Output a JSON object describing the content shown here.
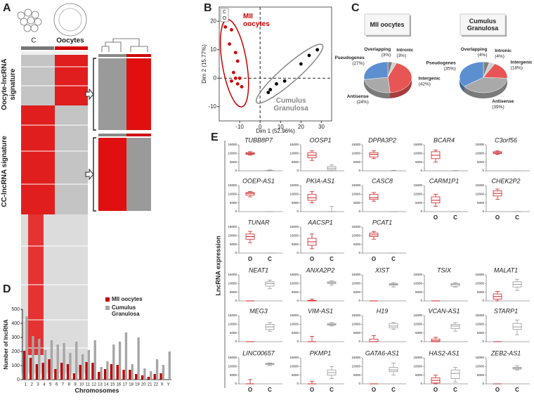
{
  "chart_data": [
    {
      "type": "heatmap",
      "panel": "A",
      "column_labels": [
        "C",
        "Oocytes"
      ],
      "row_labels": [
        "Oocyte-lncRNA signature",
        "CC-lncRNA signature"
      ]
    },
    {
      "type": "scatter",
      "panel": "B",
      "xlabel": "Dim 1 (52.96%)",
      "ylabel": "Dim 2 (15.77%)",
      "legend_labels": [
        "C",
        "O"
      ],
      "xlim": [
        -20,
        35
      ],
      "ylim": [
        -15,
        25
      ],
      "xticks": [
        -10,
        0,
        10,
        20,
        30
      ],
      "yticks": [
        -10,
        0,
        10,
        20
      ],
      "series": [
        {
          "name": "MII oocytes",
          "color": "#cc0000",
          "x": [
            -17,
            -14,
            -15,
            -12,
            -11,
            -13,
            -12,
            -14,
            -11,
            -9,
            -10
          ],
          "y": [
            18,
            17,
            12,
            9,
            6,
            2,
            0,
            -1,
            -2,
            -3,
            0
          ]
        },
        {
          "name": "Cumulus Granulosa",
          "color": "#000000",
          "x": [
            4,
            5,
            8,
            12,
            20,
            24,
            28
          ],
          "y": [
            -5,
            -4,
            -2,
            -1,
            5,
            8,
            10
          ]
        }
      ]
    },
    {
      "type": "pie",
      "panel": "C",
      "categories": [
        "Overlapping",
        "Intronic",
        "Intergenic",
        "Antisense",
        "Pseudogenes"
      ],
      "colors": [
        "#7f7f7f",
        "#d0d0d0",
        "#e85555",
        "#a9a9a9",
        "#5b8fd0"
      ],
      "pies": [
        {
          "title": "MII oocytes",
          "values": [
            3,
            3,
            42,
            24,
            27
          ],
          "value_labels": [
            "(3%)",
            "(3%)",
            "(42%)",
            "(24%)",
            "(27%)"
          ]
        },
        {
          "title": "Cumulus Granulosa",
          "values": [
            4,
            4,
            18,
            39,
            35
          ],
          "value_labels": [
            "(4%)",
            "(4%)",
            "(18%)",
            "(39%)",
            "(35%)"
          ]
        }
      ]
    },
    {
      "type": "bar",
      "panel": "D",
      "xlabel": "Chromosomes",
      "ylabel": "Number of lncRNA",
      "categories": [
        "1",
        "2",
        "3",
        "4",
        "5",
        "6",
        "7",
        "8",
        "9",
        "10",
        "11",
        "12",
        "13",
        "14",
        "15",
        "16",
        "17",
        "18",
        "19",
        "20",
        "21",
        "22",
        "X",
        "Y"
      ],
      "ylim": [
        0,
        500
      ],
      "yticks": [
        0,
        100,
        200,
        300,
        400,
        500
      ],
      "series": [
        {
          "name": "MII oocytes",
          "color": "#c00000",
          "values": [
            205,
            155,
            110,
            120,
            145,
            75,
            120,
            110,
            45,
            105,
            125,
            120,
            55,
            75,
            110,
            105,
            70,
            70,
            40,
            30,
            20,
            40,
            45,
            0
          ]
        },
        {
          "name": "Cumulus Granulosa",
          "color": "#a6a6a6",
          "values": [
            450,
            310,
            290,
            210,
            280,
            250,
            260,
            190,
            270,
            180,
            210,
            280,
            90,
            130,
            250,
            270,
            335,
            110,
            300,
            80,
            60,
            145,
            105,
            200
          ]
        }
      ]
    },
    {
      "type": "box",
      "panel": "E",
      "ylabel": "LncRNA expression",
      "categories": [
        "O",
        "C"
      ],
      "colors": [
        "#cc2222",
        "#999999"
      ],
      "ylim": [
        0,
        15000
      ],
      "yticks": [
        0,
        5000,
        10000,
        15000
      ],
      "plots": [
        {
          "title": "TUBB8P7",
          "boxes": [
            [
              9000,
              9500,
              10000,
              10500,
              11000
            ],
            [
              0,
              0,
              0,
              200,
              500
            ]
          ]
        },
        {
          "title": "OOSP1",
          "boxes": [
            [
              6000,
              7500,
              9000,
              10500,
              11500
            ],
            [
              0,
              500,
              1500,
              2500,
              3500
            ]
          ]
        },
        {
          "title": "DPPA3P2",
          "boxes": [
            [
              7000,
              8000,
              9500,
              10500,
              11500
            ],
            [
              0,
              0,
              0,
              0,
              300
            ]
          ]
        },
        {
          "title": "BCAR4",
          "boxes": [
            [
              5000,
              7000,
              9000,
              11000,
              12000
            ],
            [
              0,
              0,
              0,
              0,
              200
            ]
          ]
        },
        {
          "title": "C3orf56",
          "boxes": [
            [
              9500,
              10000,
              10500,
              11000,
              11500
            ],
            [
              0,
              0,
              0,
              0,
              0
            ]
          ]
        },
        {
          "title": "OOEP-AS1",
          "boxes": [
            [
              8500,
              9500,
              10500,
              11000,
              11500
            ],
            [
              0,
              0,
              0,
              0,
              0
            ]
          ]
        },
        {
          "title": "PKIA-AS1",
          "boxes": [
            [
              5000,
              6500,
              8000,
              10000,
              11500
            ],
            [
              0,
              0,
              0,
              0,
              3000
            ]
          ]
        },
        {
          "title": "CASC8",
          "boxes": [
            [
              6000,
              7000,
              8000,
              10000,
              11000
            ],
            [
              0,
              0,
              0,
              0,
              0
            ]
          ]
        },
        {
          "title": "CARM1P1",
          "boxes": [
            [
              3000,
              5000,
              6500,
              8500,
              10000
            ],
            [
              0,
              0,
              0,
              0,
              0
            ]
          ]
        },
        {
          "title": "CHEK2P2",
          "boxes": [
            [
              7000,
              9000,
              10500,
              12000,
              13000
            ],
            [
              0,
              0,
              0,
              0,
              0
            ]
          ]
        },
        {
          "title": "TUNAR",
          "boxes": [
            [
              6000,
              8000,
              9500,
              11000,
              12500
            ],
            [
              0,
              0,
              0,
              0,
              0
            ]
          ]
        },
        {
          "title": "AACSP1",
          "boxes": [
            [
              2500,
              4500,
              6500,
              8500,
              11000
            ],
            [
              0,
              0,
              0,
              0,
              0
            ]
          ]
        },
        {
          "title": "PCAT1",
          "boxes": [
            [
              8000,
              9500,
              10500,
              11500,
              12500
            ],
            [
              0,
              0,
              0,
              0,
              0
            ]
          ]
        },
        {
          "title": "NEAT1",
          "boxes": [
            [
              0,
              0,
              0,
              0,
              0
            ],
            [
              7000,
              8500,
              10000,
              11000,
              12000
            ]
          ]
        },
        {
          "title": "ANXA2P2",
          "boxes": [
            [
              0,
              0,
              0,
              300,
              1000
            ],
            [
              9000,
              10000,
              10500,
              11000,
              11500
            ]
          ]
        },
        {
          "title": "XIST",
          "boxes": [
            [
              0,
              0,
              0,
              0,
              0
            ],
            [
              8000,
              9000,
              9500,
              10000,
              10500
            ]
          ]
        },
        {
          "title": "TSIX",
          "boxes": [
            [
              0,
              0,
              0,
              0,
              0
            ],
            [
              8000,
              8500,
              9500,
              10000,
              10500
            ]
          ]
        },
        {
          "title": "MALAT1",
          "boxes": [
            [
              0,
              1000,
              2500,
              4000,
              5500
            ],
            [
              6000,
              8000,
              9500,
              11000,
              12500
            ]
          ]
        },
        {
          "title": "MEG3",
          "boxes": [
            [
              0,
              0,
              0,
              0,
              0
            ],
            [
              6000,
              7000,
              8500,
              10000,
              11000
            ]
          ]
        },
        {
          "title": "VIM-AS1",
          "boxes": [
            [
              0,
              0,
              0,
              0,
              3000
            ],
            [
              9000,
              9500,
              10000,
              10500,
              11000
            ]
          ]
        },
        {
          "title": "H19",
          "boxes": [
            [
              0,
              0,
              0,
              1500,
              3500
            ],
            [
              7000,
              8000,
              9000,
              10500,
              11000
            ]
          ]
        },
        {
          "title": "VCAN-AS1",
          "boxes": [
            [
              0,
              0,
              500,
              1500,
              2500
            ],
            [
              6000,
              7500,
              9000,
              10000,
              11000
            ]
          ]
        },
        {
          "title": "STARP1",
          "boxes": [
            [
              0,
              0,
              0,
              0,
              0
            ],
            [
              4000,
              7000,
              8500,
              10500,
              12500
            ]
          ]
        },
        {
          "title": "LINC00657",
          "boxes": [
            [
              0,
              0,
              0,
              0,
              2500
            ],
            [
              10500,
              11000,
              11500,
              11800,
              12000
            ]
          ]
        },
        {
          "title": "PKMP1",
          "boxes": [
            [
              0,
              0,
              0,
              0,
              1500
            ],
            [
              3000,
              5000,
              6500,
              8000,
              10000
            ]
          ]
        },
        {
          "title": "GATA6-AS1",
          "boxes": [
            [
              0,
              0,
              0,
              0,
              0
            ],
            [
              5000,
              7000,
              8000,
              9500,
              12000
            ]
          ]
        },
        {
          "title": "HAS2-AS1",
          "boxes": [
            [
              0,
              500,
              2000,
              3500,
              5000
            ],
            [
              1000,
              3000,
              6000,
              8000,
              9500
            ]
          ]
        },
        {
          "title": "ZEB2-AS1",
          "boxes": [
            [
              0,
              0,
              0,
              0,
              0
            ],
            [
              8000,
              8500,
              9000,
              9500,
              10500
            ]
          ]
        }
      ]
    }
  ]
}
